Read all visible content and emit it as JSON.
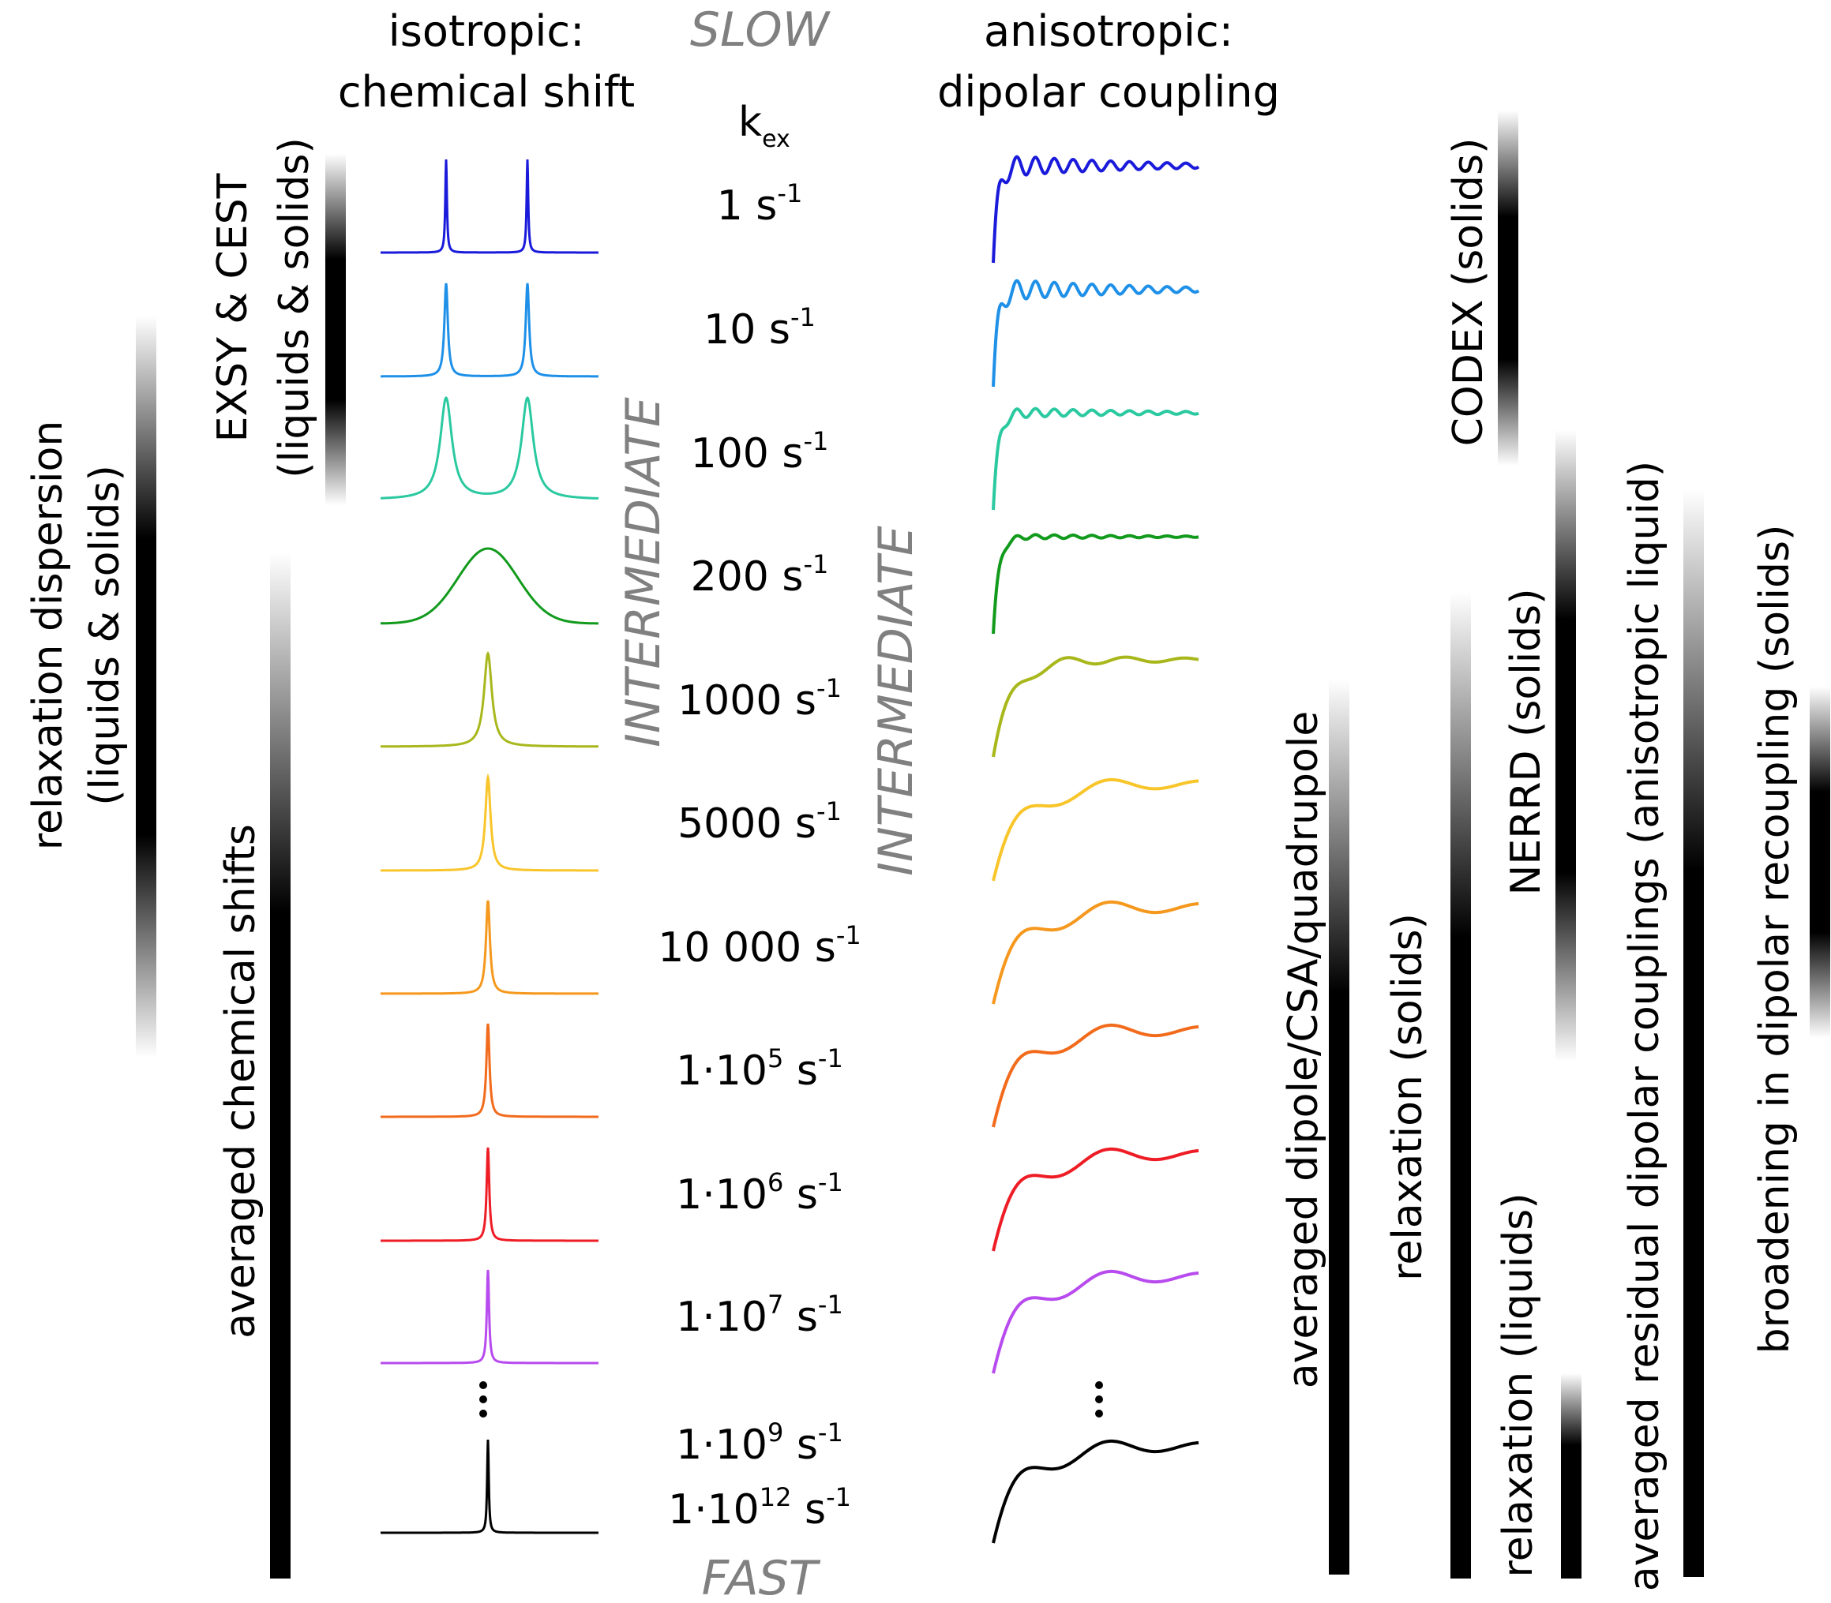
{
  "headers": {
    "isotropic_line1": "isotropic:",
    "isotropic_line2": "chemical shift",
    "anisotropic_line1": "anisotropic:",
    "anisotropic_line2": "dipolar coupling",
    "kex_base": "k",
    "kex_sub": "ex"
  },
  "regime": {
    "slow": "SLOW",
    "fast": "FAST",
    "intermediate": "INTERMEDIATE"
  },
  "rates": [
    {
      "base": "1 s",
      "sup": "-1",
      "color": "#1a1adb"
    },
    {
      "base": "10 s",
      "sup": "-1",
      "color": "#1e90e8"
    },
    {
      "base": "100 s",
      "sup": "-1",
      "color": "#2ac9a0"
    },
    {
      "base": "200 s",
      "sup": "-1",
      "color": "#119a1b"
    },
    {
      "base": "1000 s",
      "sup": "-1",
      "color": "#a8b81c"
    },
    {
      "base": "5000 s",
      "sup": "-1",
      "color": "#f8c52a"
    },
    {
      "base": "10 000 s",
      "sup": "-1",
      "color": "#f5981d"
    },
    {
      "pre": "1·10",
      "exp": "5",
      "post": " s",
      "sup": "-1",
      "color": "#f26b1c"
    },
    {
      "pre": "1·10",
      "exp": "6",
      "post": " s",
      "sup": "-1",
      "color": "#ee1c25"
    },
    {
      "pre": "1·10",
      "exp": "7",
      "post": " s",
      "sup": "-1",
      "color": "#b84bee"
    },
    {
      "pre": "1·10",
      "exp": "9",
      "post": " s",
      "sup": "-1",
      "color": "#000000"
    },
    {
      "pre": "1·10",
      "exp": "12",
      "post": " s",
      "sup": "-1",
      "color": "#000000"
    }
  ],
  "vertical_labels": {
    "relax_disp_1": "relaxation dispersion",
    "relax_disp_2": "(liquids & solids)",
    "exsy_1": "EXSY & CEST",
    "exsy_2": "(liquids & solids)",
    "avg_cs": "averaged chemical shifts",
    "avg_dipole": "averaged dipole/CSA/quadrupole",
    "relax_solids": "relaxation (solids)",
    "codex": "CODEX (solids)",
    "relax_liquids": "relaxation (liquids)",
    "nerrd": "NERRD (solids)",
    "avg_rdc": "averaged residual dipolar couplings (anisotropic liquid)",
    "broadening": "broadening in dipolar recoupling (solids)"
  }
}
